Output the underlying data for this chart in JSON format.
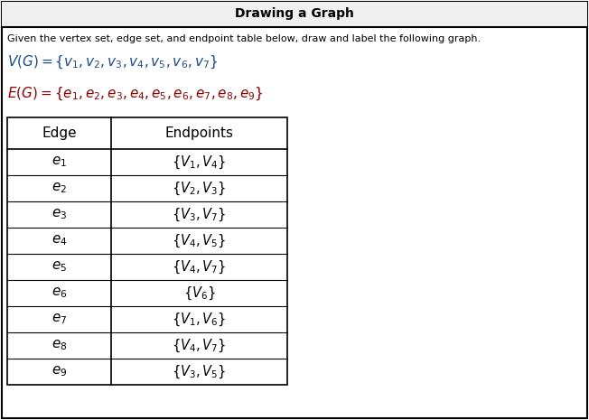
{
  "title": "Drawing a Graph",
  "intro_text": "Given the vertex set, edge set, and endpoint table below, draw and label the following graph.",
  "vg_math": "$V(G) = \\{v_1, v_2, v_3, v_4, v_5, v_6, v_7\\}$",
  "eg_math": "$E(G) = \\{e_1, e_2, e_3, e_4, e_5, e_6, e_7, e_8, e_9\\}$",
  "edges_math": [
    "$e_1$",
    "$e_2$",
    "$e_3$",
    "$e_4$",
    "$e_5$",
    "$e_6$",
    "$e_7$",
    "$e_8$",
    "$e_9$"
  ],
  "endpoints_math": [
    "$\\{V_1, V_4\\}$",
    "$\\{V_2, V_3\\}$",
    "$\\{V_3, V_7\\}$",
    "$\\{V_4, V_5\\}$",
    "$\\{V_4, V_7\\}$",
    "$\\{V_6\\}$",
    "$\\{V_1, V_6\\}$",
    "$\\{V_4, V_7\\}$",
    "$\\{V_3, V_5\\}$"
  ],
  "col_header_edge": "Edge",
  "col_header_endpoints": "Endpoints",
  "title_bg": "#f0f0f0",
  "border_color": "#000000",
  "title_color": "#000000",
  "text_color": "#000000",
  "vset_color": "#1a4a8a",
  "eset_color": "#8B0000",
  "bg_color": "#ffffff"
}
